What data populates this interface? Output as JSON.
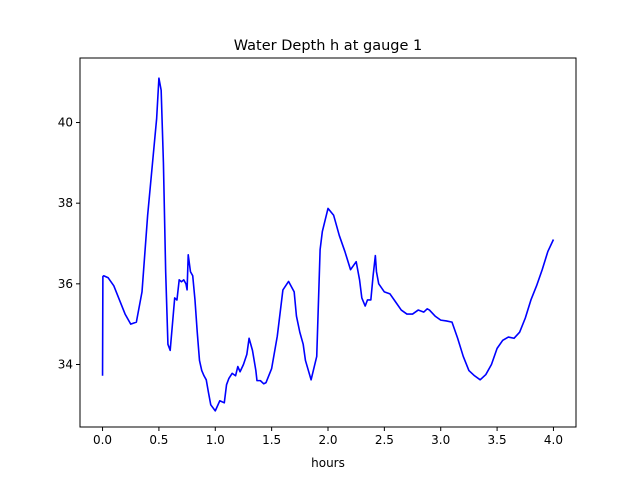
{
  "chart_data": {
    "type": "line",
    "title": "Water Depth h at gauge 1",
    "xlabel": "hours",
    "ylabel": "",
    "xlim": [
      -0.2,
      4.2
    ],
    "ylim": [
      32.45,
      41.6
    ],
    "xticks": [
      0.0,
      0.5,
      1.0,
      1.5,
      2.0,
      2.5,
      3.0,
      3.5,
      4.0
    ],
    "xtick_labels": [
      "0.0",
      "0.5",
      "1.0",
      "1.5",
      "2.0",
      "2.5",
      "3.0",
      "3.5",
      "4.0"
    ],
    "yticks": [
      34,
      36,
      38,
      40
    ],
    "ytick_labels": [
      "34",
      "36",
      "38",
      "40"
    ],
    "grid": false,
    "series": [
      {
        "name": "",
        "color": "#0000ff",
        "x": [
          0.0,
          0.003,
          0.01,
          0.05,
          0.1,
          0.15,
          0.2,
          0.25,
          0.3,
          0.35,
          0.4,
          0.43,
          0.45,
          0.48,
          0.5,
          0.52,
          0.54,
          0.56,
          0.58,
          0.6,
          0.62,
          0.64,
          0.66,
          0.68,
          0.7,
          0.72,
          0.74,
          0.75,
          0.76,
          0.78,
          0.8,
          0.82,
          0.83,
          0.84,
          0.86,
          0.88,
          0.9,
          0.92,
          0.94,
          0.96,
          1.0,
          1.04,
          1.08,
          1.1,
          1.12,
          1.15,
          1.18,
          1.2,
          1.22,
          1.25,
          1.28,
          1.3,
          1.33,
          1.36,
          1.37,
          1.4,
          1.43,
          1.45,
          1.5,
          1.55,
          1.6,
          1.65,
          1.7,
          1.72,
          1.75,
          1.78,
          1.8,
          1.85,
          1.9,
          1.93,
          1.95,
          2.0,
          2.05,
          2.07,
          2.1,
          2.15,
          2.2,
          2.25,
          2.28,
          2.3,
          2.33,
          2.35,
          2.38,
          2.4,
          2.42,
          2.43,
          2.45,
          2.5,
          2.55,
          2.6,
          2.65,
          2.7,
          2.75,
          2.8,
          2.85,
          2.88,
          2.9,
          2.95,
          3.0,
          3.05,
          3.1,
          3.15,
          3.2,
          3.25,
          3.3,
          3.35,
          3.4,
          3.45,
          3.5,
          3.55,
          3.6,
          3.65,
          3.7,
          3.75,
          3.8,
          3.85,
          3.9,
          3.95,
          4.0
        ],
        "y": [
          33.72,
          36.18,
          36.2,
          36.15,
          35.95,
          35.6,
          35.25,
          35.0,
          35.05,
          35.8,
          37.7,
          38.6,
          39.2,
          40.1,
          41.1,
          40.8,
          39.0,
          36.3,
          34.5,
          34.35,
          35.0,
          35.65,
          35.6,
          36.1,
          36.05,
          36.1,
          36.0,
          35.85,
          36.72,
          36.3,
          36.2,
          35.6,
          35.2,
          34.8,
          34.1,
          33.85,
          33.72,
          33.62,
          33.3,
          33.0,
          32.85,
          33.1,
          33.05,
          33.5,
          33.65,
          33.78,
          33.72,
          33.95,
          33.82,
          34.0,
          34.25,
          34.65,
          34.35,
          33.85,
          33.6,
          33.6,
          33.52,
          33.55,
          33.9,
          34.7,
          35.85,
          36.06,
          35.8,
          35.2,
          34.8,
          34.5,
          34.1,
          33.62,
          34.2,
          36.85,
          37.3,
          37.87,
          37.7,
          37.5,
          37.2,
          36.8,
          36.35,
          36.55,
          36.1,
          35.65,
          35.45,
          35.6,
          35.6,
          36.2,
          36.7,
          36.3,
          36.0,
          35.8,
          35.75,
          35.55,
          35.35,
          35.25,
          35.25,
          35.35,
          35.3,
          35.38,
          35.35,
          35.2,
          35.1,
          35.08,
          35.05,
          34.65,
          34.2,
          33.85,
          33.72,
          33.62,
          33.75,
          34.0,
          34.4,
          34.6,
          34.68,
          34.65,
          34.8,
          35.15,
          35.6,
          35.95,
          36.35,
          36.8,
          37.1
        ]
      }
    ]
  }
}
